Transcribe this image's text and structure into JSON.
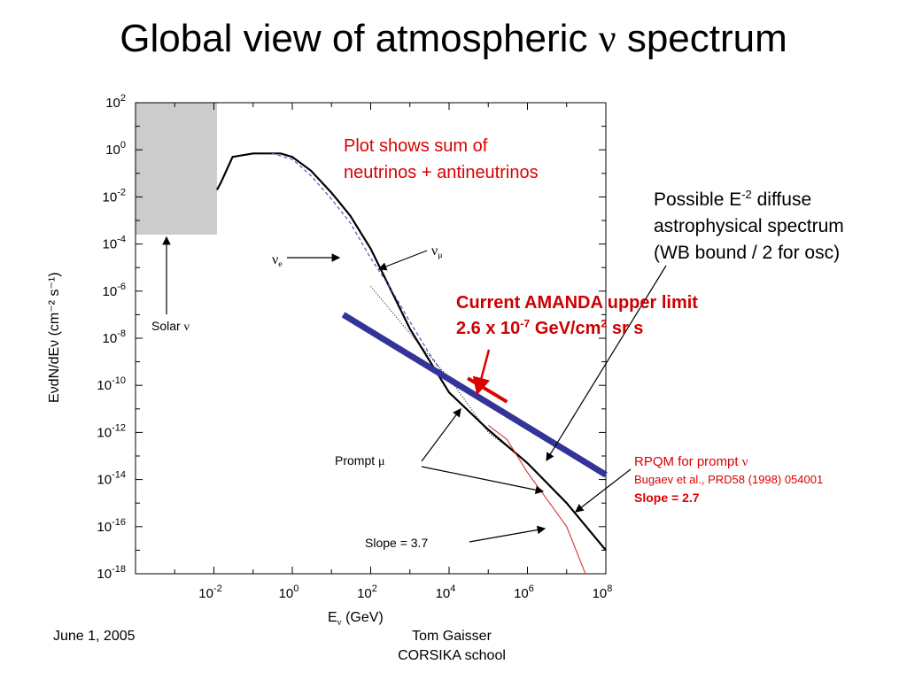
{
  "slide": {
    "title_text": "Global view of atmospheric ",
    "title_symbol": "ν",
    "title_tail": " spectrum",
    "footer_date": "June 1, 2005",
    "footer_author": "Tom Gaisser",
    "footer_event": "CORSIKA school"
  },
  "annotations": {
    "plot_shows_line1": "Plot shows sum of",
    "plot_shows_line2": "neutrinos + antineutrinos",
    "possible_line1_pre": "Possible E",
    "possible_line1_sup": "-2",
    "possible_line1_post": " diffuse",
    "possible_line2": "astrophysical spectrum",
    "possible_line3": "(WB bound / 2 for osc)",
    "amanda_line1": "Current AMANDA upper limit",
    "amanda_line2_a": " 2.6 x 10",
    "amanda_line2_sup1": "-7",
    "amanda_line2_b": " GeV/cm",
    "amanda_line2_sup2": "2",
    "amanda_line2_c": " sr s",
    "rpqm_line1": "RPQM for prompt ",
    "rpqm_symbol": "ν",
    "rpqm_line2": "Bugaev et al., PRD58 (1998) 054001",
    "rpqm_line3": "Slope = 2.7",
    "solar_label": "Solar ",
    "solar_symbol": "ν",
    "nu_e_symbol": "ν",
    "nu_e_sub": "e",
    "nu_mu_symbol": "ν",
    "nu_mu_sub": "μ",
    "prompt_label": "Prompt ",
    "prompt_symbol": "μ",
    "slope37_label": "Slope = 3.7"
  },
  "colors": {
    "wb_line": "#333399",
    "amanda_limit": "#dd0000",
    "prompt_curve": "#cc2222",
    "nu_e_curve": "#4455cc",
    "solar_box": "#cccccc"
  },
  "chart_data": {
    "type": "line",
    "x_scale": "log",
    "y_scale": "log",
    "xlim": [
      0.0001,
      100000000
    ],
    "ylim": [
      1e-18,
      100
    ],
    "grid": false,
    "xlabel_main": "E",
    "xlabel_sub": "ν",
    "xlabel_unit": "(GeV)",
    "ylabel": "EνdN/dEν   (cm⁻² s⁻¹)",
    "x_ticks": [
      {
        "base": "10",
        "exp": "-2",
        "value": 0.01
      },
      {
        "base": "10",
        "exp": "0",
        "value": 1
      },
      {
        "base": "10",
        "exp": "2",
        "value": 100
      },
      {
        "base": "10",
        "exp": "4",
        "value": 10000
      },
      {
        "base": "10",
        "exp": "6",
        "value": 1000000
      },
      {
        "base": "10",
        "exp": "8",
        "value": 100000000
      }
    ],
    "y_ticks": [
      {
        "base": "10",
        "exp": "2",
        "value": 100
      },
      {
        "base": "10",
        "exp": "0",
        "value": 1
      },
      {
        "base": "10",
        "exp": "-2",
        "value": 0.01
      },
      {
        "base": "10",
        "exp": "-4",
        "value": 0.0001
      },
      {
        "base": "10",
        "exp": "-6",
        "value": 1e-06
      },
      {
        "base": "10",
        "exp": "-8",
        "value": 1e-08
      },
      {
        "base": "10",
        "exp": "-10",
        "value": 1e-10
      },
      {
        "base": "10",
        "exp": "-12",
        "value": 1e-12
      },
      {
        "base": "10",
        "exp": "-14",
        "value": 1e-14
      },
      {
        "base": "10",
        "exp": "-16",
        "value": 1e-16
      },
      {
        "base": "10",
        "exp": "-18",
        "value": 1e-18
      }
    ],
    "solar_region": {
      "x": [
        0.0001,
        0.012
      ],
      "y": [
        0.00025,
        100
      ]
    },
    "series": [
      {
        "name": "νμ",
        "style": "solid",
        "points": [
          [
            0.012,
            0.02
          ],
          [
            0.015,
            0.04
          ],
          [
            0.03,
            0.5
          ],
          [
            0.1,
            0.7
          ],
          [
            0.5,
            0.7
          ],
          [
            1,
            0.5
          ],
          [
            3,
            0.13
          ],
          [
            10,
            0.015
          ],
          [
            30,
            0.0016
          ],
          [
            100,
            6.3e-05
          ],
          [
            1000,
            2.5e-08
          ],
          [
            10000,
            5e-11
          ],
          [
            100000,
            1.3e-12
          ],
          [
            1000000,
            5e-14
          ],
          [
            10000000,
            1e-15
          ],
          [
            100000000,
            1e-17
          ]
        ]
      },
      {
        "name": "νe",
        "style": "dashed",
        "points": [
          [
            0.3,
            0.7
          ],
          [
            1,
            0.4
          ],
          [
            3,
            0.08
          ],
          [
            10,
            0.008
          ],
          [
            30,
            0.0008
          ],
          [
            100,
            2.5e-05
          ],
          [
            300,
            1.6e-06
          ],
          [
            1000,
            5e-08
          ],
          [
            3000,
            2.5e-09
          ],
          [
            10000,
            1.3e-10
          ]
        ]
      },
      {
        "name": "Prompt μ",
        "style": "dotted",
        "points": [
          [
            100,
            1.6e-06
          ],
          [
            1000,
            1.6e-08
          ],
          [
            10000,
            2e-10
          ],
          [
            100000,
            1e-12
          ],
          [
            300000,
            2.5e-13
          ]
        ]
      },
      {
        "name": "RPQM",
        "style": "thin",
        "points": [
          [
            100000,
            2e-12
          ],
          [
            300000,
            5e-13
          ],
          [
            1000000,
            2e-14
          ],
          [
            10000000,
            1e-16
          ],
          [
            30000000,
            1e-18
          ]
        ]
      },
      {
        "name": "WB bound / 2",
        "style": "thick",
        "points": [
          [
            20,
            1e-07
          ],
          [
            100000000,
            1.6e-14
          ]
        ]
      },
      {
        "name": "AMANDA limit",
        "style": "bar",
        "points": [
          [
            30000,
            2e-10
          ],
          [
            300000,
            2e-11
          ]
        ]
      }
    ]
  }
}
